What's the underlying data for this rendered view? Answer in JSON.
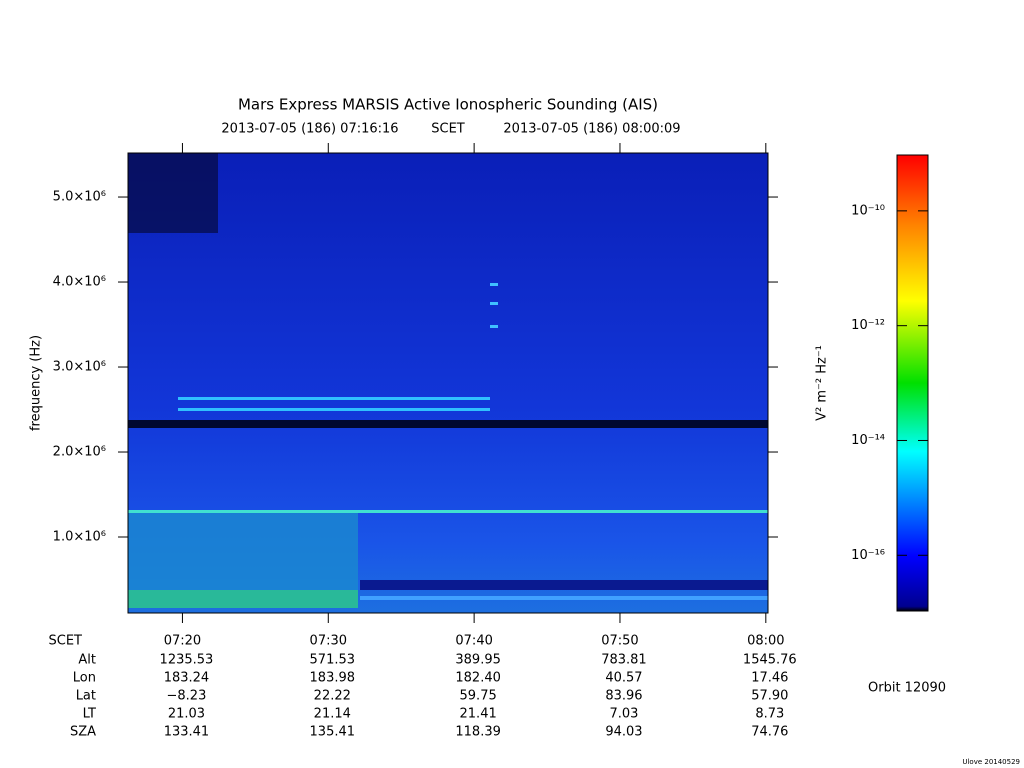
{
  "chart_data": {
    "type": "spectrogram",
    "title": "Mars Express MARSIS Active Ionospheric Sounding (AIS)",
    "time_start": "2013-07-05 (186) 07:16:16",
    "time_label": "SCET",
    "time_end": "2013-07-05 (186) 08:00:09",
    "ylabel": "frequency (Hz)",
    "xlabel": "SCET",
    "xlim": [
      436.267,
      480.15
    ],
    "xticks": [
      {
        "value": 440,
        "label": "07:20"
      },
      {
        "value": 450,
        "label": "07:30"
      },
      {
        "value": 460,
        "label": "07:40"
      },
      {
        "value": 470,
        "label": "07:50"
      },
      {
        "value": 480,
        "label": "08:00"
      }
    ],
    "ylim": [
      106000,
      5518000
    ],
    "yticks": [
      {
        "value": 1000000,
        "label": "1.0×10⁶"
      },
      {
        "value": 2000000,
        "label": "2.0×10⁶"
      },
      {
        "value": 3000000,
        "label": "3.0×10⁶"
      },
      {
        "value": 4000000,
        "label": "4.0×10⁶"
      },
      {
        "value": 5000000,
        "label": "5.0×10⁶"
      }
    ],
    "colorbar": {
      "label": "V² m⁻² Hz⁻¹",
      "scale": "log",
      "lim": [
        1.07e-17,
        9.4e-10
      ],
      "ticks": [
        {
          "value": 1e-10,
          "label": "10⁻¹⁰"
        },
        {
          "value": 1e-12,
          "label": "10⁻¹²"
        },
        {
          "value": 1e-14,
          "label": "10⁻¹⁴"
        },
        {
          "value": 1e-16,
          "label": "10⁻¹⁶"
        }
      ]
    },
    "ephemeris": [
      {
        "label": "Alt",
        "values": [
          "1235.53",
          "571.53",
          "389.95",
          "783.81",
          "1545.76"
        ]
      },
      {
        "label": "Lon",
        "values": [
          "183.24",
          "183.98",
          "182.40",
          "40.57",
          "17.46"
        ]
      },
      {
        "label": "Lat",
        "values": [
          "−8.23",
          "22.22",
          "59.75",
          "83.96",
          "57.90"
        ]
      },
      {
        "label": "LT",
        "values": [
          "21.03",
          "21.14",
          "21.41",
          "7.03",
          "8.73"
        ]
      },
      {
        "label": "SZA",
        "values": [
          "133.41",
          "135.41",
          "118.39",
          "94.03",
          "74.76"
        ]
      }
    ],
    "orbit": "Orbit 12090",
    "footer": "Ulove 20140529"
  }
}
